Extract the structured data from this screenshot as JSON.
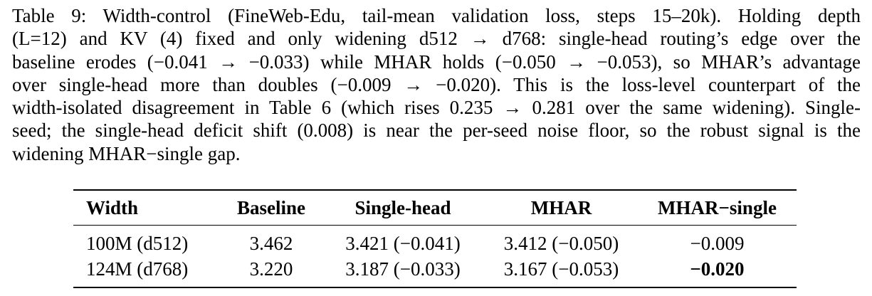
{
  "caption": {
    "lines": [
      "Table 9: Width-control (FineWeb-Edu, tail-mean validation loss, steps 15–20k). Holding depth",
      "(L=12) and KV (4) fixed and only widening d512 → d768: single-head routing’s edge over the",
      "baseline erodes (−0.041 → −0.033) while MHAR holds (−0.050 → −0.053), so MHAR’s advantage",
      "over single-head more than doubles (−0.009 → −0.020). This is the loss-level counterpart of the",
      "width-isolated disagreement in Table 6 (which rises 0.235 → 0.281 over the same widening). Single-",
      "seed; the single-head deficit shift (0.008) is near the per-seed noise floor, so the robust signal is the",
      "widening MHAR−single gap."
    ]
  },
  "table": {
    "headers": [
      "Width",
      "Baseline",
      "Single-head",
      "MHAR",
      "MHAR−single"
    ],
    "rows": [
      {
        "width": "100M (d512)",
        "baseline": "3.462",
        "single_head": "3.421 (−0.041)",
        "mhar": "3.412 (−0.050)",
        "diff": "−0.009",
        "diff_bold": false
      },
      {
        "width": "124M (d768)",
        "baseline": "3.220",
        "single_head": "3.187 (−0.033)",
        "mhar": "3.167 (−0.053)",
        "diff": "−0.020",
        "diff_bold": true
      }
    ]
  }
}
